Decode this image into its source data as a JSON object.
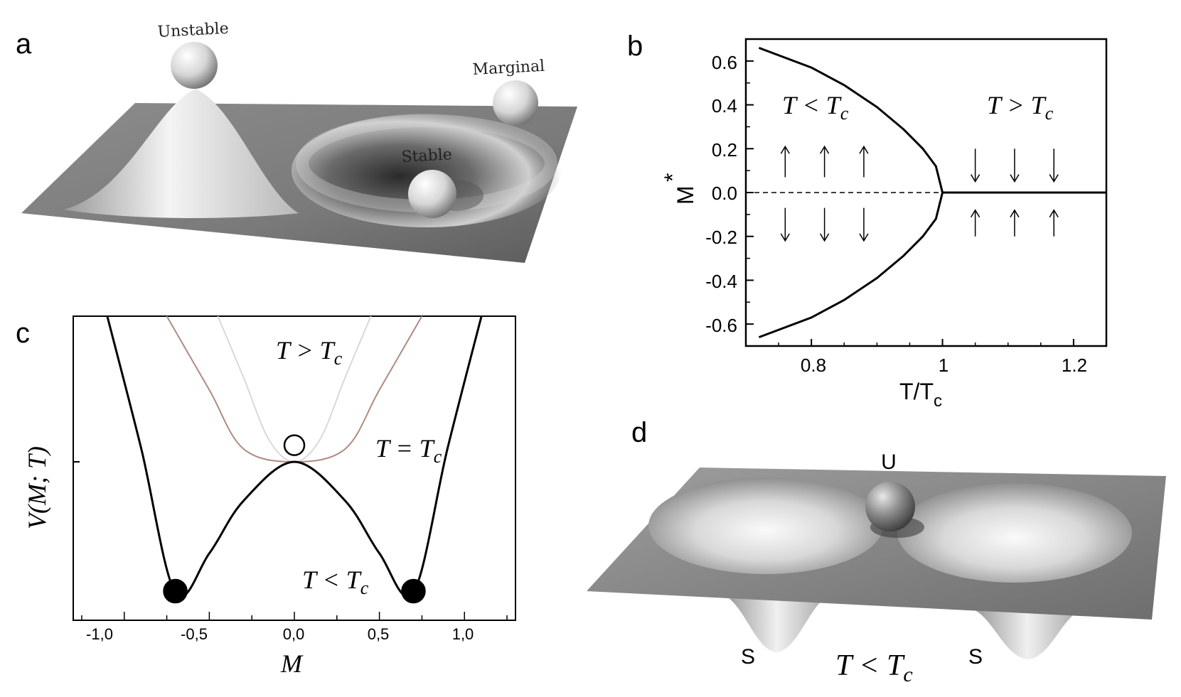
{
  "panels": {
    "a": {
      "letter": "a",
      "labels": {
        "unstable": "Unstable",
        "marginal": "Marginal",
        "stable": "Stable"
      }
    },
    "b": {
      "letter": "b",
      "xlabel_main": "T/T",
      "xlabel_sub": "c",
      "ylabel_main": "M",
      "ylabel_sup": "*",
      "x_ticks": [
        "0.8",
        "1",
        "1.2"
      ],
      "y_ticks": [
        "0.6",
        "0.4",
        "0.2",
        "0.0",
        "-0.2",
        "-0.4",
        "-0.6"
      ],
      "region_left": {
        "lhs": "T < T",
        "sub": "c"
      },
      "region_right": {
        "lhs": "T > T",
        "sub": "c"
      }
    },
    "c": {
      "letter": "c",
      "xlabel": "M",
      "ylabel": "V(M; T)",
      "x_ticks": [
        "-1,0",
        "-0,5",
        "0,0",
        "0,5",
        "1,0"
      ],
      "curve_labels": [
        {
          "lhs": "T > T",
          "sub": "c"
        },
        {
          "lhs": "T = T",
          "sub": "c"
        },
        {
          "lhs": "T < T",
          "sub": "c"
        }
      ]
    },
    "d": {
      "letter": "d",
      "label_u": "U",
      "label_s_left": "S",
      "label_s_right": "S",
      "condition": {
        "lhs": "T < T",
        "sub": "c"
      }
    }
  },
  "colors": {
    "ink": "#000000",
    "tc_curve": "#b08a82",
    "above_tc_curve": "#d9d9d9",
    "surface_dark": "#6e6e6e",
    "surface_light": "#d8d8d8"
  },
  "chart_data": [
    {
      "type": "line",
      "panel": "b",
      "xlabel": "T/Tc",
      "ylabel": "M*",
      "xlim": [
        0.7,
        1.25
      ],
      "ylim": [
        -0.7,
        0.7
      ],
      "x_tick_values": [
        0.8,
        1.0,
        1.2
      ],
      "y_tick_values": [
        0.6,
        0.4,
        0.2,
        0.0,
        -0.2,
        -0.4,
        -0.6
      ],
      "series": [
        {
          "x": [
            0.72,
            0.8,
            0.85,
            0.9,
            0.94,
            0.97,
            0.99,
            1.0
          ],
          "y": [
            0.66,
            0.57,
            0.49,
            0.39,
            0.29,
            0.2,
            0.12,
            0.0
          ]
        },
        {
          "x": [
            0.72,
            0.8,
            0.85,
            0.9,
            0.94,
            0.97,
            0.99,
            1.0
          ],
          "y": [
            -0.66,
            -0.57,
            -0.49,
            -0.39,
            -0.29,
            -0.2,
            -0.12,
            0.0
          ]
        },
        {
          "x": [
            0.7,
            1.0
          ],
          "y": [
            0.0,
            0.0
          ]
        },
        {
          "x": [
            1.0,
            1.25
          ],
          "y": [
            0.0,
            0.0
          ]
        }
      ]
    },
    {
      "type": "line",
      "panel": "c",
      "xlabel": "M",
      "ylabel": "V(M;T)",
      "xlim": [
        -1.3,
        1.3
      ],
      "x_tick_values": [
        -1.0,
        -0.5,
        0.0,
        0.5,
        1.0
      ],
      "series": [
        {
          "x": [
            -1.1,
            -0.9,
            -0.7,
            -0.5,
            -0.3,
            0.0,
            0.3,
            0.5,
            0.7,
            0.9,
            1.1
          ],
          "y": [
            1.5,
            0.1,
            -1.0,
            -0.7,
            -0.3,
            0.0,
            -0.3,
            -0.7,
            -1.0,
            0.1,
            1.5
          ]
        },
        {
          "x": [
            -0.75,
            -0.5,
            -0.3,
            0.0,
            0.3,
            0.5,
            0.75
          ],
          "y": [
            1.5,
            0.55,
            0.1,
            0.0,
            0.1,
            0.55,
            1.5
          ]
        },
        {
          "x": [
            -0.45,
            -0.3,
            -0.15,
            0.0,
            0.15,
            0.3,
            0.45
          ],
          "y": [
            1.5,
            0.65,
            0.17,
            0.0,
            0.17,
            0.65,
            1.5
          ]
        }
      ],
      "markers": [
        {
          "x": -0.7,
          "y": -1.0,
          "fill": "filled"
        },
        {
          "x": 0.7,
          "y": -1.0,
          "fill": "filled"
        },
        {
          "x": 0.0,
          "y": 0.1,
          "fill": "open"
        }
      ]
    }
  ]
}
